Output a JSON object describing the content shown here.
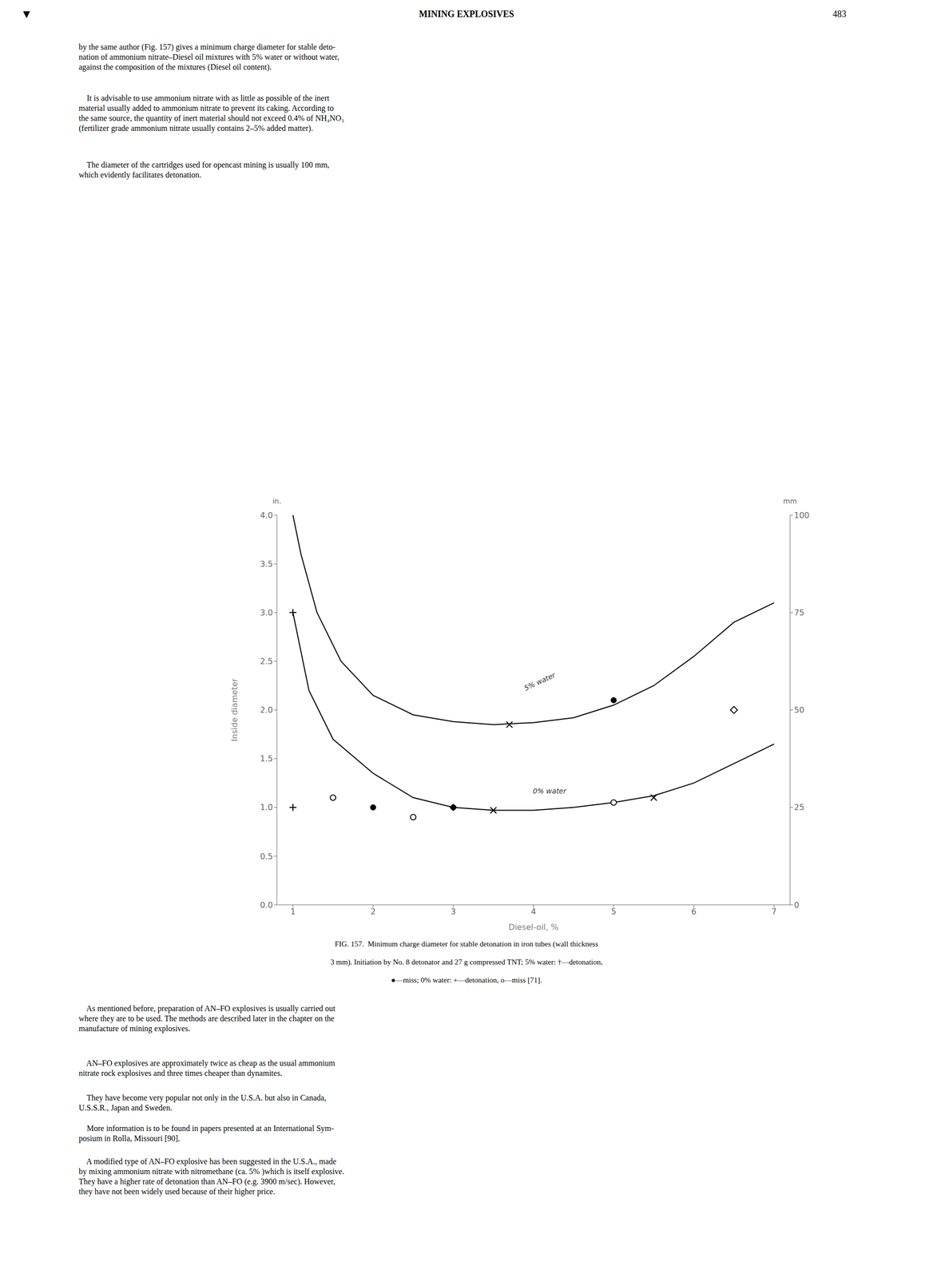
{
  "chart_data": {
    "type": "line",
    "header": "MINING EXPLOSIVES",
    "page_number": "483",
    "marker_symbol": "▼",
    "text_above": [
      "by the same author (Fig. 157) gives a minimum charge diameter for stable deto-\nnation of ammonium nitrate–Diesel oil mixtures with 5% water or without water,\nagainst the composition of the mixtures (Diesel oil content).",
      "    It is advisable to use ammonium nitrate with as little as possible of the inert\nmaterial usually added to ammonium nitrate to prevent its caking. According to\nthe same source, the quantity of inert material should not exceed 0.4% of NH₄NO₃\n(fertilizer grade ammonium nitrate usually contains 2–5% added matter).",
      "    The diameter of the cartridges used for opencast mining is usually 100 mm,\nwhich evidently facilitates detonation."
    ],
    "caption": [
      "FIG. 157.  Minimum charge diameter for stable detonation in iron tubes (wall thickness",
      "3 mm). Initiation by No. 8 detonator and 27 g compressed TNT; 5% water: †—detonation,",
      "●—miss; 0% water: +—detonation, o—miss [71]."
    ],
    "text_below": [
      "    As mentioned before, preparation of AN–FO explosives is usually carried out\nwhere they are to be used. The methods are described later in the chapter on the\nmanufacture of mining explosives.",
      "    AN–FO explosives are approximately twice as cheap as the usual ammonium\nnitrate rock explosives and three times cheaper than dynamites.",
      "    They have become very popular not only in the U.S.A. but also in Canada,\nU.S.S.R., Japan and Sweden.",
      "    More information is to be found in papers presented at an International Sym-\nposium in Rolla, Missouri [90].",
      "    A modified type of AN–FO explosive has been suggested in the U.S.A., made\nby mixing ammonium nitrate with nitromethane (ca. 5% )which is itself explosive.\nThey have a higher rate of detonation than AN–FO (e.g. 3900 m/sec). However,\nthey have not been widely used because of their higher price."
    ],
    "xlabel": "Diesel-oil, %",
    "ylabel": "Inside diameter",
    "ylabel_units": "in.",
    "y2label": "mm",
    "xlim": [
      0.8,
      7.2
    ],
    "xticks": [
      1,
      2,
      3,
      4,
      5,
      6,
      7
    ],
    "ylim": [
      0,
      4.0
    ],
    "yticks": [
      {
        "value": 0,
        "label": "0.0"
      },
      0.5,
      {
        "value": 1.0,
        "label": "1.0"
      },
      1.5,
      {
        "value": 2.0,
        "label": "2.0"
      },
      2.5,
      {
        "value": 3.0,
        "label": "3.0"
      },
      3.5,
      {
        "value": 4.0,
        "label": "4.0"
      }
    ],
    "y2lim": [
      0,
      100
    ],
    "y2ticks": [
      0,
      25,
      50,
      75,
      100
    ],
    "grid": false,
    "series": [
      {
        "type": "line",
        "color": "#000000",
        "x": [
          1.0,
          1.1,
          1.3,
          1.6,
          2.0,
          2.5,
          3.0,
          3.5,
          4.0,
          4.5,
          5.0,
          5.5,
          6.0,
          6.5,
          7.0
        ],
        "values": [
          4.0,
          3.6,
          3.0,
          2.5,
          2.15,
          1.95,
          1.88,
          1.85,
          1.87,
          1.92,
          2.05,
          2.25,
          2.55,
          2.9,
          3.1
        ]
      },
      {
        "type": "line",
        "color": "#000000",
        "x": [
          1.0,
          1.2,
          1.5,
          2.0,
          2.5,
          3.0,
          3.5,
          4.0,
          4.5,
          5.0,
          5.5,
          6.0,
          6.5,
          7.0
        ],
        "values": [
          3.0,
          2.2,
          1.7,
          1.35,
          1.1,
          1.0,
          0.97,
          0.97,
          1.0,
          1.05,
          1.12,
          1.25,
          1.45,
          1.65
        ]
      },
      {
        "type": "scatter",
        "marker": "plus",
        "color": "#000000",
        "x": [
          1.0
        ],
        "values": [
          3.0
        ]
      },
      {
        "type": "scatter",
        "marker": "x",
        "color": "#000000",
        "x": [
          3.7
        ],
        "values": [
          1.85
        ]
      },
      {
        "type": "scatter",
        "marker": "circle",
        "color": "#000000",
        "x": [
          5.0
        ],
        "values": [
          2.1
        ]
      },
      {
        "type": "scatter",
        "marker": "diamond_open",
        "color": "#000000",
        "x": [
          6.5
        ],
        "values": [
          2.0
        ]
      },
      {
        "type": "scatter",
        "marker": "plus",
        "color": "#000000",
        "x": [
          1.0,
          3.0
        ],
        "values": [
          1.0,
          1.0
        ]
      },
      {
        "type": "scatter",
        "marker": "x",
        "color": "#000000",
        "x": [
          3.5,
          5.5
        ],
        "values": [
          0.97,
          1.1
        ]
      },
      {
        "type": "scatter",
        "marker": "circle_open",
        "color": "#000000",
        "x": [
          1.5,
          2.5,
          5.0
        ],
        "values": [
          1.1,
          0.9,
          1.05
        ]
      },
      {
        "type": "scatter",
        "marker": "circle",
        "color": "#000000",
        "x": [
          2.0,
          3.0
        ],
        "values": [
          1.0,
          1.0
        ]
      }
    ],
    "annotations": [
      {
        "text": "5% water",
        "x": 4.1,
        "y": 2.25
      },
      {
        "text": "0% water",
        "x": 4.2,
        "y": 1.12
      }
    ]
  }
}
